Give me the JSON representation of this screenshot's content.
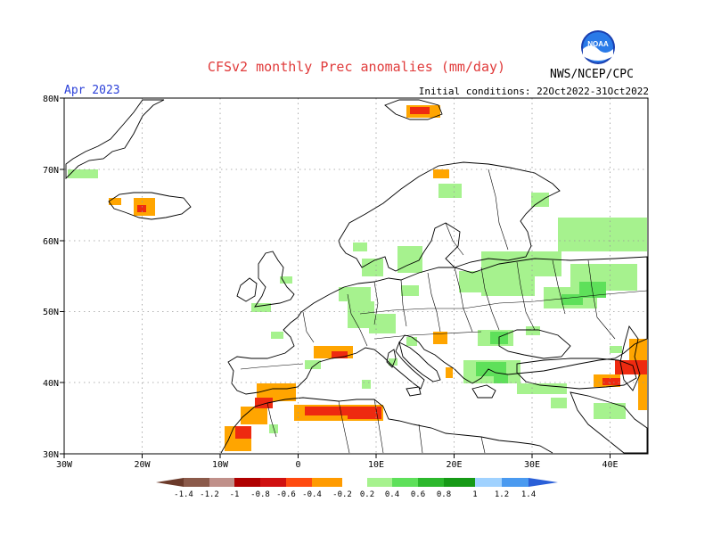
{
  "header": {
    "title": "CFSv2 monthly Prec anomalies (mm/day)",
    "month": "Apr 2023",
    "initial_conditions": "Initial conditions: 22Oct2022-31Oct2022",
    "agency": "NWS/NCEP/CPC",
    "logo_text": "NOAA"
  },
  "map": {
    "lon_range": [
      -30,
      45
    ],
    "lat_range": [
      30,
      80
    ],
    "lon_labels": [
      "30W",
      "20W",
      "10W",
      "0",
      "10E",
      "20E",
      "30E",
      "40E"
    ],
    "lat_labels": [
      "30N",
      "40N",
      "50N",
      "60N",
      "70N",
      "80N"
    ],
    "grid": "dotted"
  },
  "legend": {
    "labels": [
      "-1.4",
      "-1.2",
      "-1",
      "-0.8",
      "-0.6",
      "-0.4",
      "-0.2",
      "0.2",
      "0.4",
      "0.6",
      "0.8",
      "1",
      "1.2",
      "1.4"
    ],
    "colors": [
      "#6b3a2a",
      "#8b5a4a",
      "#c0908a",
      "#b00000",
      "#d01010",
      "#ff4a10",
      "#ff9b00",
      "#ffffff",
      "#a6f28e",
      "#5ee05a",
      "#2cb82c",
      "#169a16",
      "#a0d2ff",
      "#4a9af0",
      "#2a5fd8"
    ]
  },
  "regions": {
    "orange": "#ffa500",
    "red": "#ee2a10",
    "lightgreen": "#a6f28e",
    "green": "#5ee05a"
  }
}
